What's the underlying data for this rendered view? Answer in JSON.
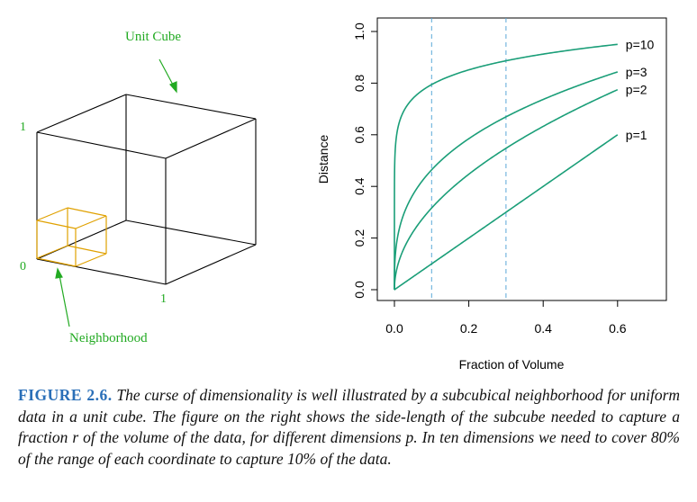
{
  "left_figure": {
    "title_label": "Unit Cube",
    "neighborhood_label": "Neighborhood",
    "axis_one_top": "1",
    "axis_zero": "0",
    "axis_one_bottom": "1"
  },
  "chart_data": {
    "type": "line",
    "title": "",
    "xlabel": "Fraction of Volume",
    "ylabel": "Distance",
    "xlim": [
      0,
      0.7
    ],
    "ylim": [
      0,
      1.0
    ],
    "xticks": [
      "0.0",
      "0.2",
      "0.4",
      "0.6"
    ],
    "yticks": [
      "0.0",
      "0.2",
      "0.4",
      "0.6",
      "0.8",
      "1.0"
    ],
    "vlines": [
      0.1,
      0.3
    ],
    "line_color": "#1a9e78",
    "vline_color": "#5aa8d8",
    "series": [
      {
        "name": "p=1",
        "p": 1
      },
      {
        "name": "p=2",
        "p": 2
      },
      {
        "name": "p=3",
        "p": 3
      },
      {
        "name": "p=10",
        "p": 10
      }
    ],
    "x_range": [
      0,
      0.6
    ]
  },
  "caption": {
    "label": "FIGURE 2.6.",
    "text": "The curse of dimensionality is well illustrated by a subcubical neighborhood for uniform data in a unit cube. The figure on the right shows the side-length of the subcube needed to capture a fraction r of the volume of the data, for different dimensions p. In ten dimensions we need to cover 80% of the range of each coordinate to capture 10% of the data."
  }
}
